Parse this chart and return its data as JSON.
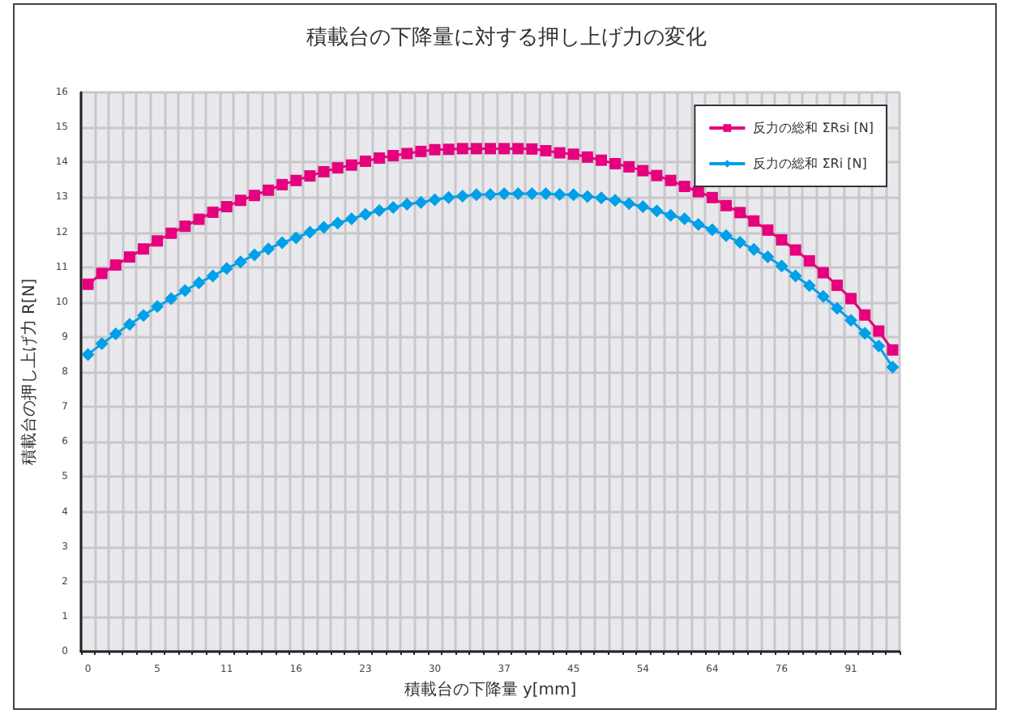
{
  "chart_data": {
    "type": "line",
    "title": "積載台の下降量に対する押し上げ力の変化",
    "xlabel": "積載台の下降量 y[mm]",
    "ylabel": "積載台の押し上げ力 R[N]",
    "categories": [
      "0",
      null,
      null,
      null,
      null,
      "5",
      null,
      null,
      null,
      null,
      "11",
      null,
      null,
      null,
      null,
      "16",
      null,
      null,
      null,
      null,
      "23",
      null,
      null,
      null,
      null,
      "30",
      null,
      null,
      null,
      null,
      "37",
      null,
      null,
      null,
      null,
      "45",
      null,
      null,
      null,
      null,
      "54",
      null,
      null,
      null,
      null,
      "64",
      null,
      null,
      null,
      null,
      "76",
      null,
      null,
      null,
      null,
      "91",
      null,
      null,
      null
    ],
    "series": [
      {
        "name": "反力の総和 ΣRsi [N]",
        "color": "#e6007e",
        "marker": "square",
        "values": [
          10.51,
          10.82,
          11.06,
          11.29,
          11.52,
          11.75,
          11.97,
          12.17,
          12.37,
          12.57,
          12.73,
          12.91,
          13.05,
          13.2,
          13.36,
          13.48,
          13.61,
          13.73,
          13.84,
          13.92,
          14.03,
          14.12,
          14.19,
          14.25,
          14.31,
          14.36,
          14.37,
          14.39,
          14.39,
          14.39,
          14.39,
          14.39,
          14.38,
          14.33,
          14.27,
          14.23,
          14.15,
          14.06,
          13.96,
          13.87,
          13.76,
          13.62,
          13.48,
          13.31,
          13.16,
          12.99,
          12.76,
          12.56,
          12.32,
          12.06,
          11.78,
          11.49,
          11.18,
          10.84,
          10.48,
          10.1,
          9.63,
          9.17,
          8.63
        ]
      },
      {
        "name": "反力の総和 ΣRi [N]",
        "color": "#00a0e9",
        "marker": "diamond",
        "values": [
          8.5,
          8.81,
          9.09,
          9.36,
          9.62,
          9.87,
          10.1,
          10.33,
          10.55,
          10.75,
          10.96,
          11.15,
          11.35,
          11.52,
          11.7,
          11.84,
          12.0,
          12.14,
          12.26,
          12.38,
          12.51,
          12.62,
          12.71,
          12.8,
          12.85,
          12.93,
          12.99,
          13.03,
          13.07,
          13.08,
          13.1,
          13.1,
          13.1,
          13.1,
          13.08,
          13.07,
          13.02,
          12.98,
          12.91,
          12.82,
          12.73,
          12.61,
          12.48,
          12.38,
          12.22,
          12.07,
          11.9,
          11.71,
          11.51,
          11.29,
          11.03,
          10.75,
          10.47,
          10.16,
          9.82,
          9.48,
          9.11,
          8.74,
          8.14
        ]
      }
    ],
    "ylim": [
      0,
      16
    ],
    "yticks": [
      0,
      1,
      2,
      3,
      4,
      5,
      6,
      7,
      8,
      9,
      10,
      11,
      12,
      13,
      14,
      15,
      16
    ],
    "grid": true,
    "legend": "top right"
  }
}
